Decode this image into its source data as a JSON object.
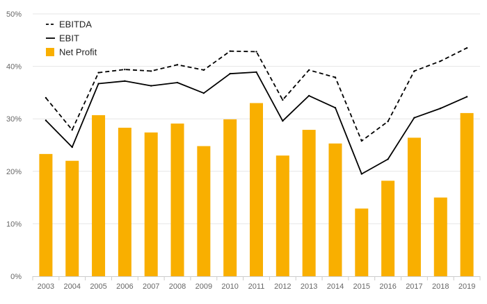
{
  "chart_data": {
    "type": "bar",
    "title": "",
    "xlabel": "",
    "ylabel": "",
    "categories": [
      "2003",
      "2004",
      "2005",
      "2006",
      "2007",
      "2008",
      "2009",
      "2010",
      "2011",
      "2012",
      "2013",
      "2014",
      "2015",
      "2016",
      "2017",
      "2018",
      "2019"
    ],
    "ylim": [
      0,
      50
    ],
    "yticks": [
      "0%",
      "10%",
      "20%",
      "30%",
      "40%",
      "50%"
    ],
    "grid": true,
    "legend_position": "top-left",
    "series": [
      {
        "name": "EBITDA",
        "kind": "line",
        "style": "dashed",
        "color": "#000000",
        "values": [
          34.0,
          27.9,
          38.8,
          39.4,
          39.1,
          40.3,
          39.3,
          42.9,
          42.8,
          33.6,
          39.3,
          37.9,
          25.8,
          29.5,
          39.1,
          41.0,
          43.5
        ]
      },
      {
        "name": "EBIT",
        "kind": "line",
        "style": "solid",
        "color": "#000000",
        "values": [
          29.7,
          24.6,
          36.7,
          37.2,
          36.3,
          36.9,
          34.9,
          38.6,
          38.9,
          29.6,
          34.4,
          32.1,
          19.5,
          22.3,
          30.2,
          32.0,
          34.2
        ]
      },
      {
        "name": "Net Profit",
        "kind": "bar",
        "color": "#F9AF00",
        "values": [
          23.3,
          22.0,
          30.7,
          28.3,
          27.4,
          29.1,
          24.8,
          29.9,
          33.0,
          23.0,
          27.9,
          25.3,
          12.9,
          18.2,
          26.4,
          15.0,
          31.1
        ]
      }
    ]
  }
}
